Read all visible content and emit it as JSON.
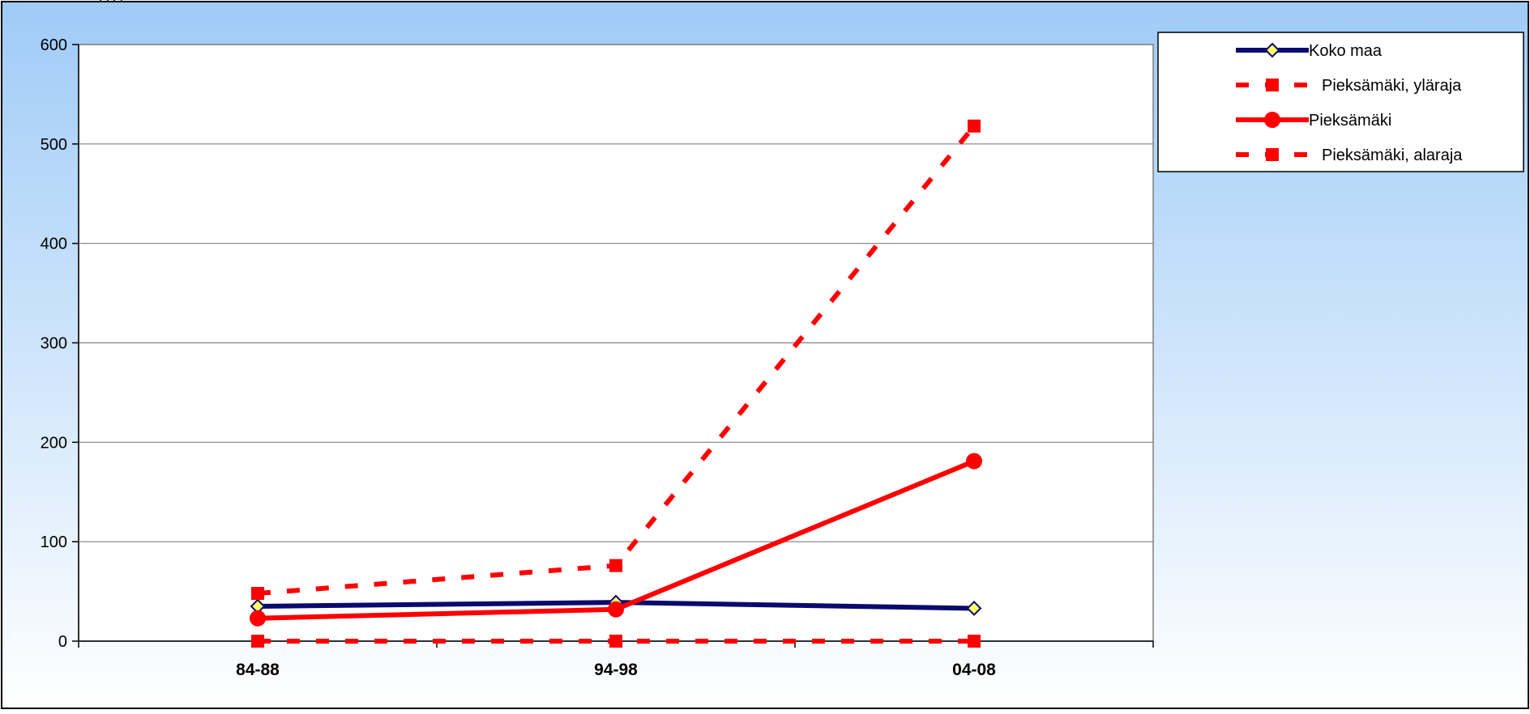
{
  "header_fragment": "(          )(          )",
  "chart_data": {
    "type": "line",
    "categories": [
      "84-88",
      "94-98",
      "04-08"
    ],
    "ylim": [
      0,
      600
    ],
    "yticks": [
      0,
      100,
      200,
      300,
      400,
      500,
      600
    ],
    "grid": true,
    "legend_position": "top-right",
    "series": [
      {
        "name": "Koko maa",
        "values": [
          35,
          39,
          33
        ],
        "color": "#0a0a6e",
        "dashed": false,
        "marker": "diamond",
        "marker_fill": "#ffff66"
      },
      {
        "name": "Pieksämäki, yläraja",
        "values": [
          48,
          76,
          518
        ],
        "color": "#ff0000",
        "dashed": true,
        "marker": "square",
        "marker_fill": "#ff0000"
      },
      {
        "name": "Pieksämäki",
        "values": [
          23,
          32,
          181
        ],
        "color": "#ff0000",
        "dashed": false,
        "marker": "circle",
        "marker_fill": "#ff0000"
      },
      {
        "name": "Pieksämäki, alaraja",
        "values": [
          0,
          0,
          0
        ],
        "color": "#ff0000",
        "dashed": true,
        "marker": "square",
        "marker_fill": "#ff0000"
      }
    ]
  },
  "colors": {
    "background_top": "#9fcbf7",
    "background_bottom": "#ffffff",
    "plot_area": "#ffffff",
    "grid": "#808080",
    "axis": "#000000"
  }
}
